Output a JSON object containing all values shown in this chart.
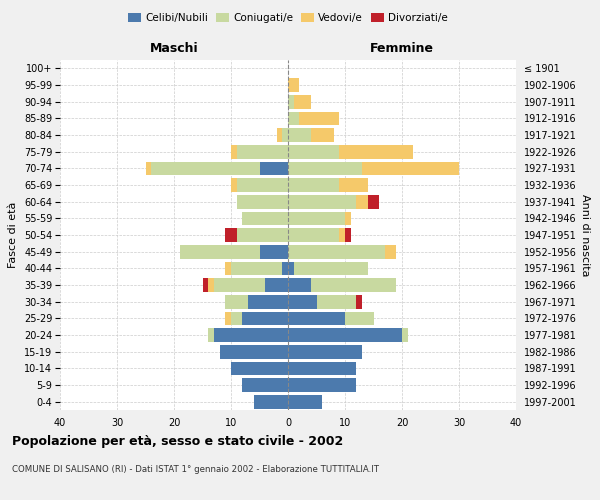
{
  "age_groups": [
    "100+",
    "95-99",
    "90-94",
    "85-89",
    "80-84",
    "75-79",
    "70-74",
    "65-69",
    "60-64",
    "55-59",
    "50-54",
    "45-49",
    "40-44",
    "35-39",
    "30-34",
    "25-29",
    "20-24",
    "15-19",
    "10-14",
    "5-9",
    "0-4"
  ],
  "birth_years": [
    "≤ 1901",
    "1902-1906",
    "1907-1911",
    "1912-1916",
    "1917-1921",
    "1922-1926",
    "1927-1931",
    "1932-1936",
    "1937-1941",
    "1942-1946",
    "1947-1951",
    "1952-1956",
    "1957-1961",
    "1962-1966",
    "1967-1971",
    "1972-1976",
    "1977-1981",
    "1982-1986",
    "1987-1991",
    "1992-1996",
    "1997-2001"
  ],
  "male": {
    "celibi": [
      0,
      0,
      0,
      0,
      0,
      0,
      5,
      0,
      0,
      0,
      0,
      5,
      1,
      4,
      7,
      8,
      13,
      12,
      10,
      8,
      6
    ],
    "coniugati": [
      0,
      0,
      0,
      0,
      1,
      9,
      19,
      9,
      9,
      8,
      9,
      14,
      9,
      9,
      4,
      2,
      1,
      0,
      0,
      0,
      0
    ],
    "vedovi": [
      0,
      0,
      0,
      0,
      1,
      1,
      1,
      1,
      0,
      0,
      0,
      0,
      1,
      1,
      0,
      1,
      0,
      0,
      0,
      0,
      0
    ],
    "divorziati": [
      0,
      0,
      0,
      0,
      0,
      0,
      0,
      0,
      0,
      0,
      2,
      0,
      0,
      1,
      0,
      0,
      0,
      0,
      0,
      0,
      0
    ]
  },
  "female": {
    "nubili": [
      0,
      0,
      0,
      0,
      0,
      0,
      0,
      0,
      0,
      0,
      0,
      0,
      1,
      4,
      5,
      10,
      20,
      13,
      12,
      12,
      6
    ],
    "coniugate": [
      0,
      0,
      1,
      2,
      4,
      9,
      13,
      9,
      12,
      10,
      9,
      17,
      13,
      15,
      7,
      5,
      1,
      0,
      0,
      0,
      0
    ],
    "vedove": [
      0,
      2,
      3,
      7,
      4,
      13,
      17,
      5,
      2,
      1,
      1,
      2,
      0,
      0,
      0,
      0,
      0,
      0,
      0,
      0,
      0
    ],
    "divorziate": [
      0,
      0,
      0,
      0,
      0,
      0,
      0,
      0,
      2,
      0,
      1,
      0,
      0,
      0,
      1,
      0,
      0,
      0,
      0,
      0,
      0
    ]
  },
  "colors": {
    "celibi_nubili": "#4c7aad",
    "coniugati": "#c8d9a0",
    "vedovi": "#f5c96a",
    "divorziati": "#c0202a"
  },
  "xlim": 40,
  "title": "Popolazione per età, sesso e stato civile - 2002",
  "subtitle": "COMUNE DI SALISANO (RI) - Dati ISTAT 1° gennaio 2002 - Elaborazione TUTTITALIA.IT",
  "ylabel_left": "Fasce di età",
  "ylabel_right": "Anni di nascita",
  "xlabel_left": "Maschi",
  "xlabel_right": "Femmine",
  "bg_color": "#f0f0f0",
  "plot_bg": "#ffffff"
}
